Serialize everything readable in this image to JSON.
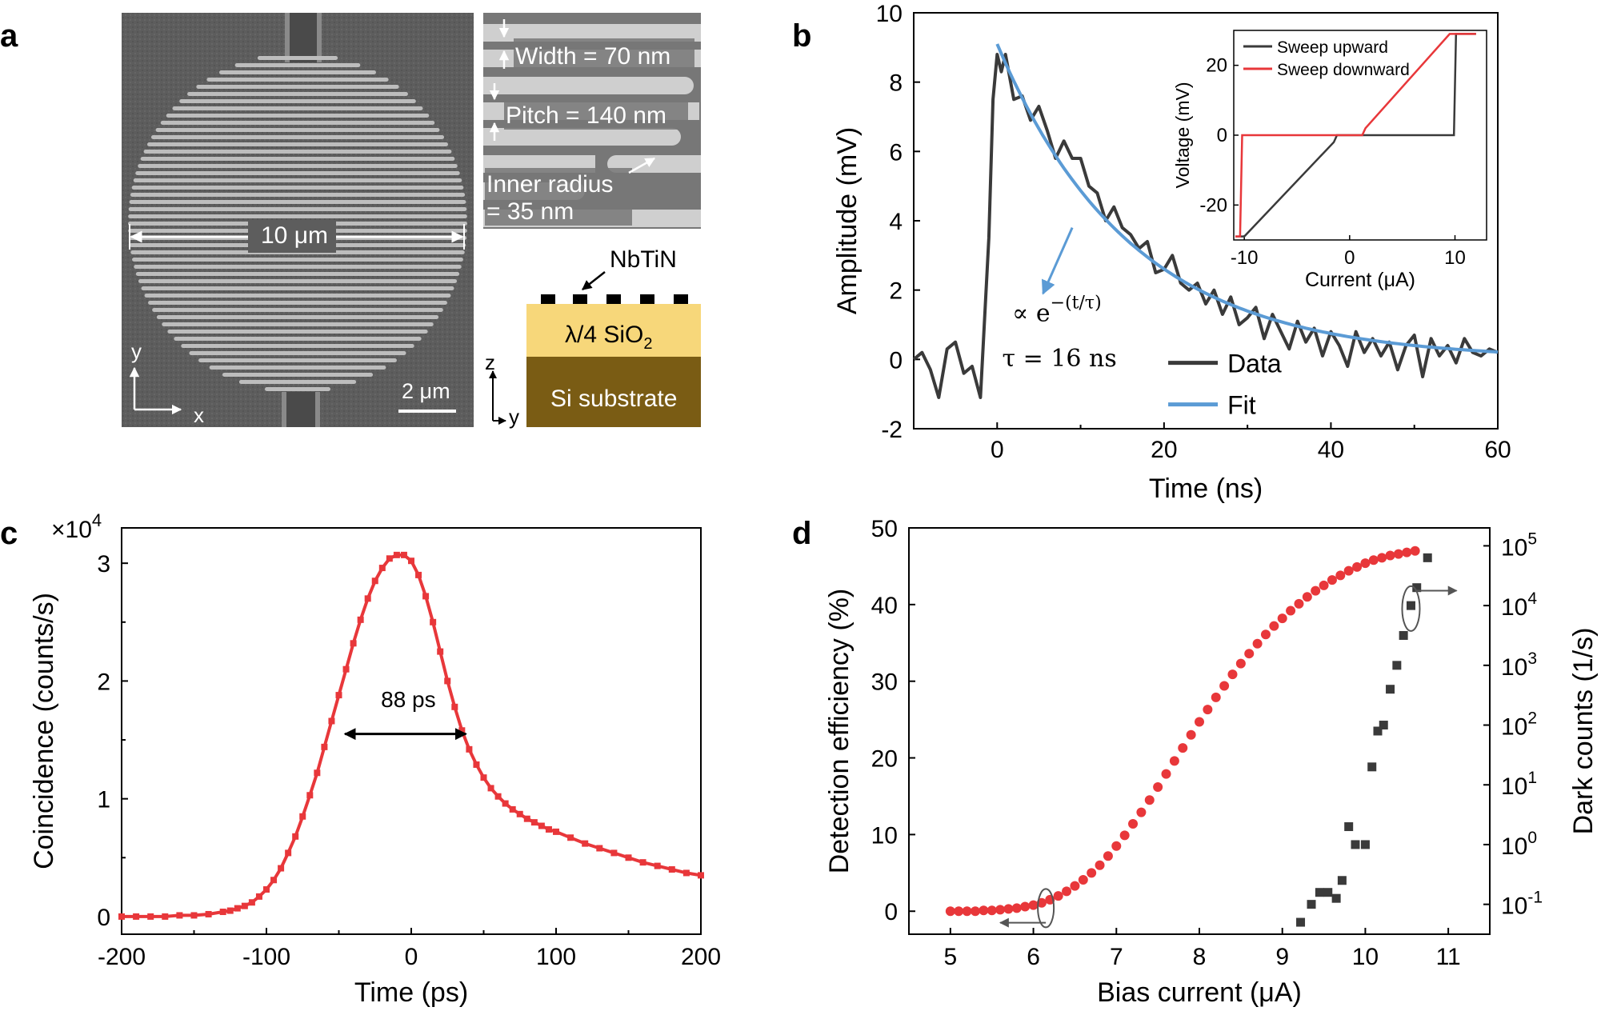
{
  "panel_a": {
    "label": "a",
    "sem_size_label": "10 μm",
    "scale_bar_label": "2 μm",
    "axis_y": "y",
    "axis_x": "x",
    "inset_width": "Width = 70 nm",
    "inset_pitch": "Pitch = 140 nm",
    "inset_radius_1": "Inner radius",
    "inset_radius_2": "= 35 nm",
    "stack_nbtin": "NbTiN",
    "stack_sio2": "λ/4 SiO",
    "stack_sio2_sub": "2",
    "stack_si": "Si substrate",
    "stack_axis_z": "z",
    "stack_axis_y": "y",
    "colors": {
      "sem_bg": "#5a5a5a",
      "sio2": "#f7d77a",
      "si": "#7a5c14"
    }
  },
  "panel_b_label": "b",
  "panel_c_label": "c",
  "panel_d_label": "d",
  "chart_data": [
    {
      "id": "b",
      "type": "line",
      "xlabel": "Time (ns)",
      "ylabel": "Amplitude (mV)",
      "xlim": [
        -10,
        60
      ],
      "ylim": [
        -2,
        10
      ],
      "xticks": [
        "0",
        "20",
        "40",
        "60"
      ],
      "yticks": [
        "-2",
        "0",
        "2",
        "4",
        "6",
        "8",
        "10"
      ],
      "legend": [
        "Data",
        "Fit"
      ],
      "colors": [
        "#3a3a3a",
        "#5b9bd5"
      ],
      "annotation_formula": "∝ e",
      "annotation_exponent": "−(t/τ)",
      "annotation_tau": "τ = 16 ns",
      "data_x": [
        -10,
        -9,
        -8,
        -7,
        -6,
        -5,
        -4,
        -3,
        -2,
        -1,
        -0.5,
        0,
        0.5,
        1,
        2,
        3,
        4,
        5,
        6,
        7,
        8,
        9,
        10,
        11,
        12,
        13,
        14,
        15,
        16,
        17,
        18,
        19,
        20,
        21,
        22,
        23,
        24,
        25,
        26,
        27,
        28,
        29,
        30,
        31,
        32,
        33,
        34,
        35,
        36,
        37,
        38,
        39,
        40,
        41,
        42,
        43,
        44,
        45,
        46,
        47,
        48,
        49,
        50,
        51,
        52,
        53,
        54,
        55,
        56,
        57,
        58,
        59,
        60
      ],
      "data_y": [
        0.0,
        0.2,
        -0.3,
        -1.1,
        0.3,
        0.5,
        -0.4,
        -0.2,
        -1.1,
        3.5,
        7.5,
        8.8,
        8.3,
        8.8,
        7.5,
        7.6,
        6.9,
        7.3,
        6.6,
        5.8,
        6.3,
        5.8,
        5.8,
        5.0,
        4.8,
        4.0,
        4.4,
        3.8,
        3.6,
        3.2,
        3.4,
        2.5,
        2.6,
        3.0,
        2.2,
        2.0,
        2.2,
        1.6,
        2.0,
        1.3,
        1.8,
        1.0,
        1.2,
        1.5,
        0.6,
        1.3,
        0.8,
        0.3,
        1.1,
        0.5,
        0.9,
        0.1,
        0.8,
        0.4,
        -0.2,
        0.8,
        0.2,
        0.6,
        0.1,
        0.5,
        -0.3,
        0.4,
        0.7,
        -0.5,
        0.6,
        0.1,
        0.4,
        -0.1,
        0.6,
        0.2,
        0.1,
        0.3,
        0.2
      ],
      "fit_tau": 16,
      "fit_amplitude": 9.1,
      "fit_x_range": [
        0,
        60
      ],
      "inset": {
        "type": "line",
        "xlabel": "Current (μA)",
        "ylabel": "Voltage (mV)",
        "xlim": [
          -11,
          13
        ],
        "ylim": [
          -30,
          30
        ],
        "xticks": [
          "-10",
          "0",
          "10"
        ],
        "yticks": [
          "-20",
          "0",
          "20"
        ],
        "legend": [
          "Sweep upward",
          "Sweep downward"
        ],
        "colors": [
          "#3a3a3a",
          "#e8373a"
        ],
        "upward_x": [
          -12,
          -10,
          -1.5,
          -1.2,
          9.9,
          10.1,
          12
        ],
        "upward_y": [
          -29,
          -29,
          -2,
          0,
          0,
          29,
          29
        ],
        "downward_x": [
          12,
          9.5,
          1.5,
          1.2,
          -10.2,
          -10.4,
          -12
        ],
        "downward_y": [
          29,
          29,
          2,
          0,
          0,
          -29,
          -29
        ]
      }
    },
    {
      "id": "c",
      "type": "line",
      "xlabel": "Time (ps)",
      "ylabel": "Coincidence (counts/s)",
      "multiplier_base": "×10",
      "multiplier_exp": "4",
      "xlim": [
        -200,
        200
      ],
      "ylim": [
        -0.15,
        3.3
      ],
      "xticks": [
        "-200",
        "-100",
        "0",
        "100",
        "200"
      ],
      "yticks": [
        "0",
        "1",
        "2",
        "3"
      ],
      "fwhm_label": "88 ps",
      "fwhm_range": [
        -48,
        40
      ],
      "fwhm_level": 1.55,
      "color": "#e8373a",
      "x": [
        -200,
        -190,
        -180,
        -170,
        -160,
        -150,
        -140,
        -130,
        -125,
        -120,
        -115,
        -110,
        -105,
        -100,
        -95,
        -90,
        -85,
        -80,
        -75,
        -70,
        -65,
        -60,
        -55,
        -50,
        -45,
        -40,
        -35,
        -30,
        -25,
        -20,
        -15,
        -10,
        -5,
        0,
        5,
        10,
        15,
        20,
        25,
        30,
        35,
        40,
        45,
        50,
        55,
        60,
        65,
        70,
        75,
        80,
        85,
        90,
        95,
        100,
        110,
        120,
        130,
        140,
        150,
        160,
        170,
        180,
        190,
        200
      ],
      "y": [
        0.0,
        0.0,
        0.0,
        0.0,
        0.01,
        0.01,
        0.02,
        0.04,
        0.05,
        0.07,
        0.09,
        0.12,
        0.17,
        0.23,
        0.31,
        0.41,
        0.54,
        0.68,
        0.85,
        1.03,
        1.22,
        1.44,
        1.66,
        1.88,
        2.1,
        2.32,
        2.52,
        2.7,
        2.85,
        2.96,
        3.04,
        3.07,
        3.07,
        3.02,
        2.9,
        2.72,
        2.5,
        2.25,
        2.0,
        1.78,
        1.58,
        1.42,
        1.29,
        1.18,
        1.09,
        1.02,
        0.96,
        0.91,
        0.87,
        0.83,
        0.8,
        0.77,
        0.74,
        0.72,
        0.67,
        0.62,
        0.58,
        0.54,
        0.5,
        0.46,
        0.43,
        0.4,
        0.37,
        0.35
      ]
    },
    {
      "id": "d",
      "type": "scatter",
      "xlabel": "Bias current (μA)",
      "ylabel_left": "Detection efficiency (%)",
      "ylabel_right": "Dark counts (1/s)",
      "xlim": [
        4.5,
        11.5
      ],
      "ylim_left": [
        -3,
        50
      ],
      "ylim_right_log": [
        -1.5,
        5.3
      ],
      "xticks": [
        "5",
        "6",
        "7",
        "8",
        "9",
        "10",
        "11"
      ],
      "yticks_left": [
        "0",
        "10",
        "20",
        "30",
        "40",
        "50"
      ],
      "yticks_right_exp": [
        "-1",
        "0",
        "1",
        "2",
        "3",
        "4",
        "5"
      ],
      "yticks_right_base": "10",
      "colors": [
        "#e8373a",
        "#3a3a3a"
      ],
      "efficiency_x": [
        5.0,
        5.1,
        5.2,
        5.3,
        5.4,
        5.5,
        5.6,
        5.7,
        5.8,
        5.9,
        6.0,
        6.1,
        6.2,
        6.3,
        6.4,
        6.5,
        6.6,
        6.7,
        6.8,
        6.9,
        7.0,
        7.1,
        7.2,
        7.3,
        7.4,
        7.5,
        7.6,
        7.7,
        7.8,
        7.9,
        8.0,
        8.1,
        8.2,
        8.3,
        8.4,
        8.5,
        8.6,
        8.7,
        8.8,
        8.9,
        9.0,
        9.1,
        9.2,
        9.3,
        9.4,
        9.5,
        9.6,
        9.7,
        9.8,
        9.9,
        10.0,
        10.1,
        10.2,
        10.3,
        10.4,
        10.5,
        10.6
      ],
      "efficiency_y": [
        0.0,
        0.0,
        0.0,
        0.0,
        0.1,
        0.1,
        0.2,
        0.3,
        0.4,
        0.6,
        0.8,
        1.1,
        1.5,
        2.0,
        2.6,
        3.3,
        4.1,
        5.0,
        6.0,
        7.2,
        8.5,
        9.9,
        11.4,
        12.9,
        14.5,
        16.2,
        17.9,
        19.6,
        21.3,
        23.0,
        24.7,
        26.3,
        27.9,
        29.4,
        30.9,
        32.3,
        33.6,
        34.9,
        36.1,
        37.2,
        38.2,
        39.2,
        40.1,
        41.0,
        41.8,
        42.5,
        43.2,
        43.8,
        44.4,
        44.9,
        45.4,
        45.8,
        46.1,
        46.4,
        46.6,
        46.8,
        47.0
      ],
      "dark_x": [
        9.22,
        9.35,
        9.45,
        9.55,
        9.65,
        9.72,
        9.8,
        9.88,
        10.0,
        10.08,
        10.15,
        10.22,
        10.3,
        10.38,
        10.46,
        10.55,
        10.62,
        10.75
      ],
      "dark_log": [
        -1.3,
        -1.0,
        -0.8,
        -0.8,
        -0.9,
        -0.6,
        0.3,
        0.0,
        0.0,
        1.3,
        1.9,
        2.0,
        2.6,
        3.0,
        3.5,
        4.0,
        4.3,
        4.8
      ]
    }
  ]
}
